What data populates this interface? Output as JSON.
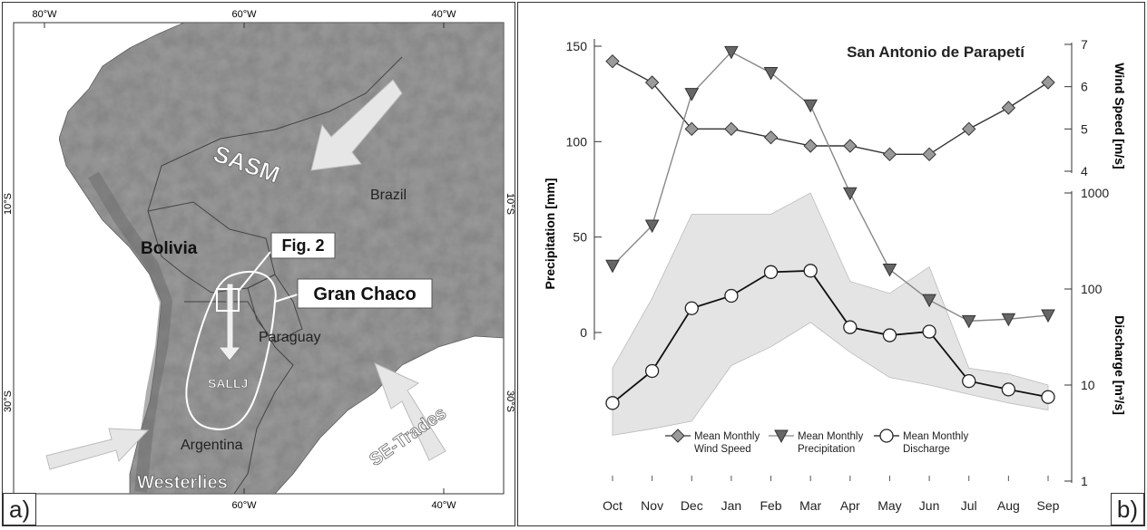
{
  "panel_a": {
    "letter": "a)",
    "lon_top": [
      "80°W",
      "60°W",
      "40°W"
    ],
    "lon_bottom": [
      "60°W",
      "40°W"
    ],
    "lat_left": [
      "10°S",
      "30°S"
    ],
    "lat_right": [
      "10°S",
      "30°S"
    ],
    "labels": {
      "sasm": "SASM",
      "brazil": "Brazil",
      "bolivia": "Bolivia",
      "fig2": "Fig. 2",
      "gran_chaco": "Gran Chaco",
      "paraguay": "Paraguay",
      "sallj": "SALLJ",
      "argentina": "Argentina",
      "westerlies": "Westerlies",
      "se_trades": "SE-Trades"
    }
  },
  "panel_b": {
    "letter": "b)"
  },
  "chart_data": {
    "type": "line",
    "title": "San Antonio de Parapetí",
    "categories": [
      "Oct",
      "Nov",
      "Dec",
      "Jan",
      "Feb",
      "Mar",
      "Apr",
      "May",
      "Jun",
      "Jul",
      "Aug",
      "Sep"
    ],
    "axes": {
      "precipitation": {
        "label": "Precipitation [mm]",
        "range": [
          -50,
          150
        ],
        "ticks": [
          "150",
          "100",
          "50",
          "0"
        ],
        "tick_values": [
          150,
          100,
          50,
          0
        ]
      },
      "wind": {
        "label": "Wind Speed [m/s]",
        "range": [
          4,
          7
        ],
        "ticks": [
          "7",
          "6",
          "5",
          "4"
        ],
        "tick_values": [
          7,
          6,
          5,
          4
        ]
      },
      "discharge": {
        "label": "Discharge [m³/s]",
        "scale": "log",
        "range": [
          1,
          1000
        ],
        "ticks": [
          "1000",
          "100",
          "10",
          "1"
        ],
        "tick_values": [
          1000,
          100,
          10,
          1
        ]
      }
    },
    "series": [
      {
        "name": "Mean Monthly Wind Speed",
        "axis": "wind",
        "marker": "diamond",
        "values": [
          6.6,
          6.1,
          5.0,
          5.0,
          4.8,
          4.6,
          4.6,
          4.4,
          4.4,
          5.0,
          5.5,
          6.1
        ]
      },
      {
        "name": "Mean Monthly Precipitation",
        "axis": "precipitation",
        "marker": "triangle",
        "values": [
          35,
          56,
          125,
          147,
          136,
          119,
          73,
          33,
          17,
          6,
          7,
          9
        ]
      },
      {
        "name": "Mean Monthly Discharge",
        "axis": "discharge",
        "marker": "circle",
        "values": [
          6.5,
          14,
          63,
          85,
          150,
          155,
          40,
          33,
          36,
          11,
          9,
          7.5
        ]
      }
    ],
    "discharge_band": {
      "upper": [
        15,
        80,
        600,
        600,
        600,
        1000,
        120,
        90,
        170,
        15,
        13,
        10
      ],
      "lower": [
        3,
        3.5,
        4.2,
        16,
        25,
        45,
        22,
        12,
        10,
        8,
        6.5,
        5.5
      ]
    },
    "legend_position": "bottom-center"
  }
}
